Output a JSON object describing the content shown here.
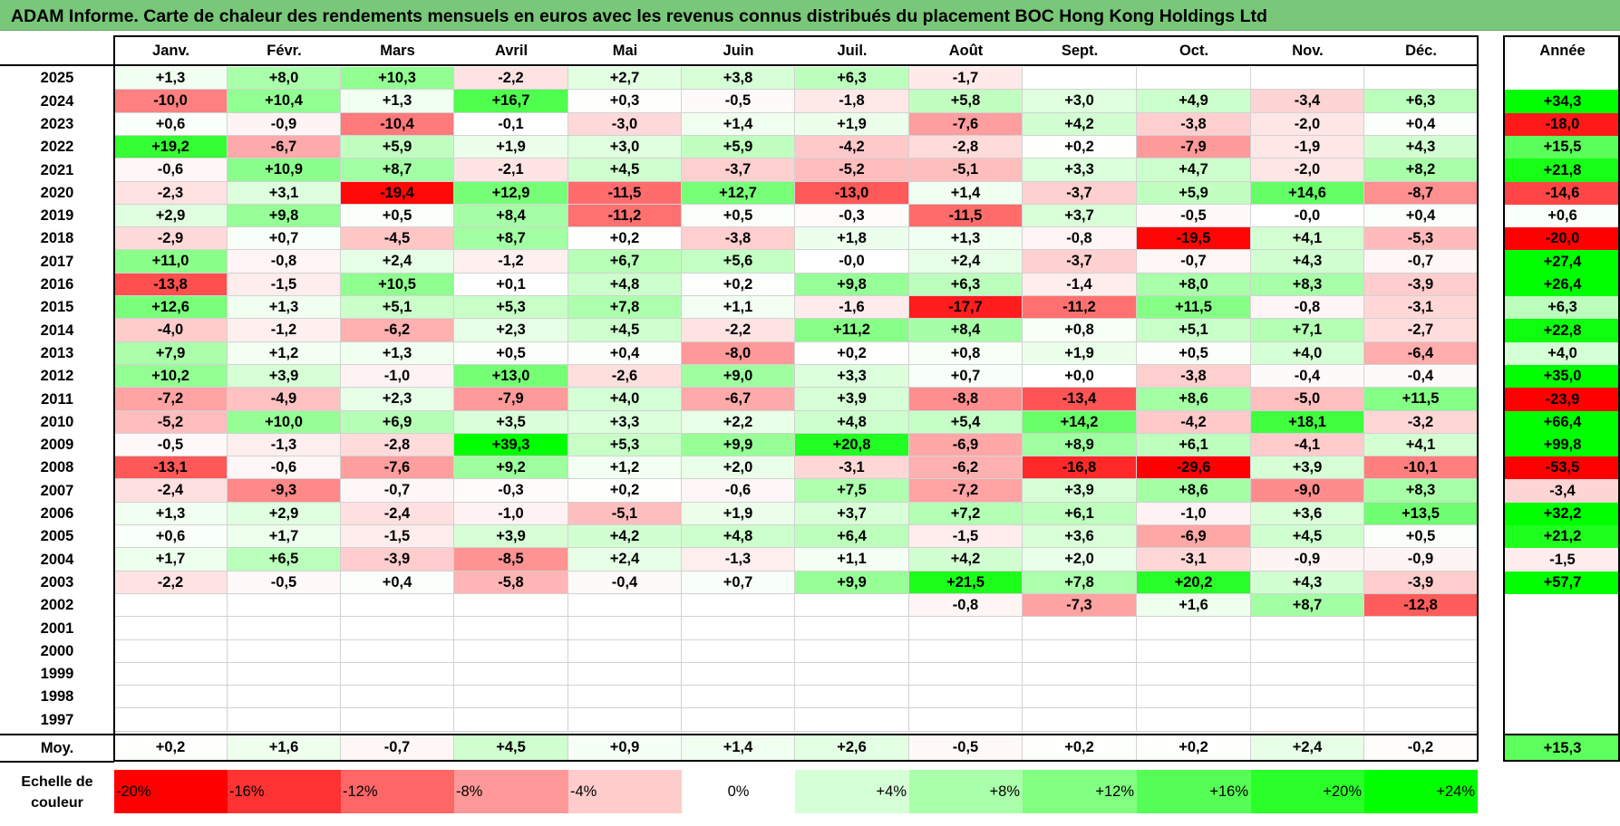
{
  "title": "ADAM Informe. Carte de chaleur des rendements mensuels en euros avec les revenus connus distribués du placement BOC Hong Kong Holdings Ltd",
  "annee_header": "Année",
  "moy_label": "Moy.",
  "legend_label": [
    "Echelle de",
    "couleur"
  ],
  "colors": {
    "negative_max": "#ff0000",
    "zero": "#ffffff",
    "positive_max": "#00ff00",
    "title_bg": "#79c779"
  },
  "chart_data": {
    "type": "heatmap",
    "title": "ADAM Informe. Carte de chaleur des rendements mensuels en euros avec les revenus connus distribués du placement BOC Hong Kong Holdings Ltd",
    "months": [
      "Janv.",
      "Févr.",
      "Mars",
      "Avril",
      "Mai",
      "Juin",
      "Juil.",
      "Août",
      "Sept.",
      "Oct.",
      "Nov.",
      "Déc."
    ],
    "rows": [
      {
        "year": "2025",
        "m": [
          "+1,3",
          "+8,0",
          "+10,3",
          "-2,2",
          "+2,7",
          "+3,8",
          "+6,3",
          "-1,7",
          "",
          "",
          "",
          ""
        ],
        "y": ""
      },
      {
        "year": "2024",
        "m": [
          "-10,0",
          "+10,4",
          "+1,3",
          "+16,7",
          "+0,3",
          "-0,5",
          "-1,8",
          "+5,8",
          "+3,0",
          "+4,9",
          "-3,4",
          "+6,3"
        ],
        "y": "+34,3"
      },
      {
        "year": "2023",
        "m": [
          "+0,6",
          "-0,9",
          "-10,4",
          "-0,1",
          "-3,0",
          "+1,4",
          "+1,9",
          "-7,6",
          "+4,2",
          "-3,8",
          "-2,0",
          "+0,4"
        ],
        "y": "-18,0"
      },
      {
        "year": "2022",
        "m": [
          "+19,2",
          "-6,7",
          "+5,9",
          "+1,9",
          "+3,0",
          "+5,9",
          "-4,2",
          "-2,8",
          "+0,2",
          "-7,9",
          "-1,9",
          "+4,3"
        ],
        "y": "+15,5"
      },
      {
        "year": "2021",
        "m": [
          "-0,6",
          "+10,9",
          "+8,7",
          "-2,1",
          "+4,5",
          "-3,7",
          "-5,2",
          "-5,1",
          "+3,3",
          "+4,7",
          "-2,0",
          "+8,2"
        ],
        "y": "+21,8"
      },
      {
        "year": "2020",
        "m": [
          "-2,3",
          "+3,1",
          "-19,4",
          "+12,9",
          "-11,5",
          "+12,7",
          "-13,0",
          "+1,4",
          "-3,7",
          "+5,9",
          "+14,6",
          "-8,7"
        ],
        "y": "-14,6"
      },
      {
        "year": "2019",
        "m": [
          "+2,9",
          "+9,8",
          "+0,5",
          "+8,4",
          "-11,2",
          "+0,5",
          "-0,3",
          "-11,5",
          "+3,7",
          "-0,5",
          "-0,0",
          "+0,4"
        ],
        "y": "+0,6"
      },
      {
        "year": "2018",
        "m": [
          "-2,9",
          "+0,7",
          "-4,5",
          "+8,7",
          "+0,2",
          "-3,8",
          "+1,8",
          "+1,3",
          "-0,8",
          "-19,5",
          "+4,1",
          "-5,3"
        ],
        "y": "-20,0"
      },
      {
        "year": "2017",
        "m": [
          "+11,0",
          "-0,8",
          "+2,4",
          "-1,2",
          "+6,7",
          "+5,6",
          "-0,0",
          "+2,4",
          "-3,7",
          "-0,7",
          "+4,3",
          "-0,7"
        ],
        "y": "+27,4"
      },
      {
        "year": "2016",
        "m": [
          "-13,8",
          "-1,5",
          "+10,5",
          "+0,1",
          "+4,8",
          "+0,2",
          "+9,8",
          "+6,3",
          "-1,4",
          "+8,0",
          "+8,3",
          "-3,9"
        ],
        "y": "+26,4"
      },
      {
        "year": "2015",
        "m": [
          "+12,6",
          "+1,3",
          "+5,1",
          "+5,3",
          "+7,8",
          "+1,1",
          "-1,6",
          "-17,7",
          "-11,2",
          "+11,5",
          "-0,8",
          "-3,1"
        ],
        "y": "+6,3"
      },
      {
        "year": "2014",
        "m": [
          "-4,0",
          "-1,2",
          "-6,2",
          "+2,3",
          "+4,5",
          "-2,2",
          "+11,2",
          "+8,4",
          "+0,8",
          "+5,1",
          "+7,1",
          "-2,7"
        ],
        "y": "+22,8"
      },
      {
        "year": "2013",
        "m": [
          "+7,9",
          "+1,2",
          "+1,3",
          "+0,5",
          "+0,4",
          "-8,0",
          "+0,2",
          "+0,8",
          "+1,9",
          "+0,5",
          "+4,0",
          "-6,4"
        ],
        "y": "+4,0"
      },
      {
        "year": "2012",
        "m": [
          "+10,2",
          "+3,9",
          "-1,0",
          "+13,0",
          "-2,6",
          "+9,0",
          "+3,3",
          "+0,7",
          "+0,0",
          "-3,8",
          "-0,4",
          "-0,4"
        ],
        "y": "+35,0"
      },
      {
        "year": "2011",
        "m": [
          "-7,2",
          "-4,9",
          "+2,3",
          "-7,9",
          "+4,0",
          "-6,7",
          "+3,9",
          "-8,8",
          "-13,4",
          "+8,6",
          "-5,0",
          "+11,5"
        ],
        "y": "-23,9"
      },
      {
        "year": "2010",
        "m": [
          "-5,2",
          "+10,0",
          "+6,9",
          "+3,5",
          "+3,3",
          "+2,2",
          "+4,8",
          "+5,4",
          "+14,2",
          "-4,2",
          "+18,1",
          "-3,2"
        ],
        "y": "+66,4"
      },
      {
        "year": "2009",
        "m": [
          "-0,5",
          "-1,3",
          "-2,8",
          "+39,3",
          "+5,3",
          "+9,9",
          "+20,8",
          "-6,9",
          "+8,9",
          "+6,1",
          "-4,1",
          "+4,1"
        ],
        "y": "+99,8"
      },
      {
        "year": "2008",
        "m": [
          "-13,1",
          "-0,6",
          "-7,6",
          "+9,2",
          "+1,2",
          "+2,0",
          "-3,1",
          "-6,2",
          "-16,8",
          "-29,6",
          "+3,9",
          "-10,1"
        ],
        "y": "-53,5"
      },
      {
        "year": "2007",
        "m": [
          "-2,4",
          "-9,3",
          "-0,7",
          "-0,3",
          "+0,2",
          "-0,6",
          "+7,5",
          "-7,2",
          "+3,9",
          "+8,6",
          "-9,0",
          "+8,3"
        ],
        "y": "-3,4"
      },
      {
        "year": "2006",
        "m": [
          "+1,3",
          "+2,9",
          "-2,4",
          "-1,0",
          "-5,1",
          "+1,9",
          "+3,7",
          "+7,2",
          "+6,1",
          "-1,0",
          "+3,6",
          "+13,5"
        ],
        "y": "+32,2"
      },
      {
        "year": "2005",
        "m": [
          "+0,6",
          "+1,7",
          "-1,5",
          "+3,9",
          "+4,2",
          "+4,8",
          "+6,4",
          "-1,5",
          "+3,6",
          "-6,9",
          "+4,5",
          "+0,5"
        ],
        "y": "+21,2"
      },
      {
        "year": "2004",
        "m": [
          "+1,7",
          "+6,5",
          "-3,9",
          "-8,5",
          "+2,4",
          "-1,3",
          "+1,1",
          "+4,2",
          "+2,0",
          "-3,1",
          "-0,9",
          "-0,9"
        ],
        "y": "-1,5"
      },
      {
        "year": "2003",
        "m": [
          "-2,2",
          "-0,5",
          "+0,4",
          "-5,8",
          "-0,4",
          "+0,7",
          "+9,9",
          "+21,5",
          "+7,8",
          "+20,2",
          "+4,3",
          "-3,9"
        ],
        "y": "+57,7"
      },
      {
        "year": "2002",
        "m": [
          "",
          "",
          "",
          "",
          "",
          "",
          "",
          "-0,8",
          "-7,3",
          "+1,6",
          "+8,7",
          "-12,8"
        ],
        "y": ""
      },
      {
        "year": "2001",
        "m": [
          "",
          "",
          "",
          "",
          "",
          "",
          "",
          "",
          "",
          "",
          "",
          ""
        ],
        "y": ""
      },
      {
        "year": "2000",
        "m": [
          "",
          "",
          "",
          "",
          "",
          "",
          "",
          "",
          "",
          "",
          "",
          ""
        ],
        "y": ""
      },
      {
        "year": "1999",
        "m": [
          "",
          "",
          "",
          "",
          "",
          "",
          "",
          "",
          "",
          "",
          "",
          ""
        ],
        "y": ""
      },
      {
        "year": "1998",
        "m": [
          "",
          "",
          "",
          "",
          "",
          "",
          "",
          "",
          "",
          "",
          "",
          ""
        ],
        "y": ""
      },
      {
        "year": "1997",
        "m": [
          "",
          "",
          "",
          "",
          "",
          "",
          "",
          "",
          "",
          "",
          "",
          ""
        ],
        "y": ""
      }
    ],
    "averages": [
      "+0,2",
      "+1,6",
      "-0,7",
      "+4,5",
      "+0,9",
      "+1,4",
      "+2,6",
      "-0,5",
      "+0,2",
      "+0,2",
      "+2,4",
      "-0,2"
    ],
    "average_year": "+15,3",
    "color_scale": [
      "-20%",
      "-16%",
      "-12%",
      "-8%",
      "-4%",
      "0%",
      "+4%",
      "+8%",
      "+12%",
      "+16%",
      "+20%",
      "+24%"
    ],
    "color_scale_values": [
      -20,
      -16,
      -12,
      -8,
      -4,
      0,
      4,
      8,
      12,
      16,
      20,
      24
    ]
  }
}
